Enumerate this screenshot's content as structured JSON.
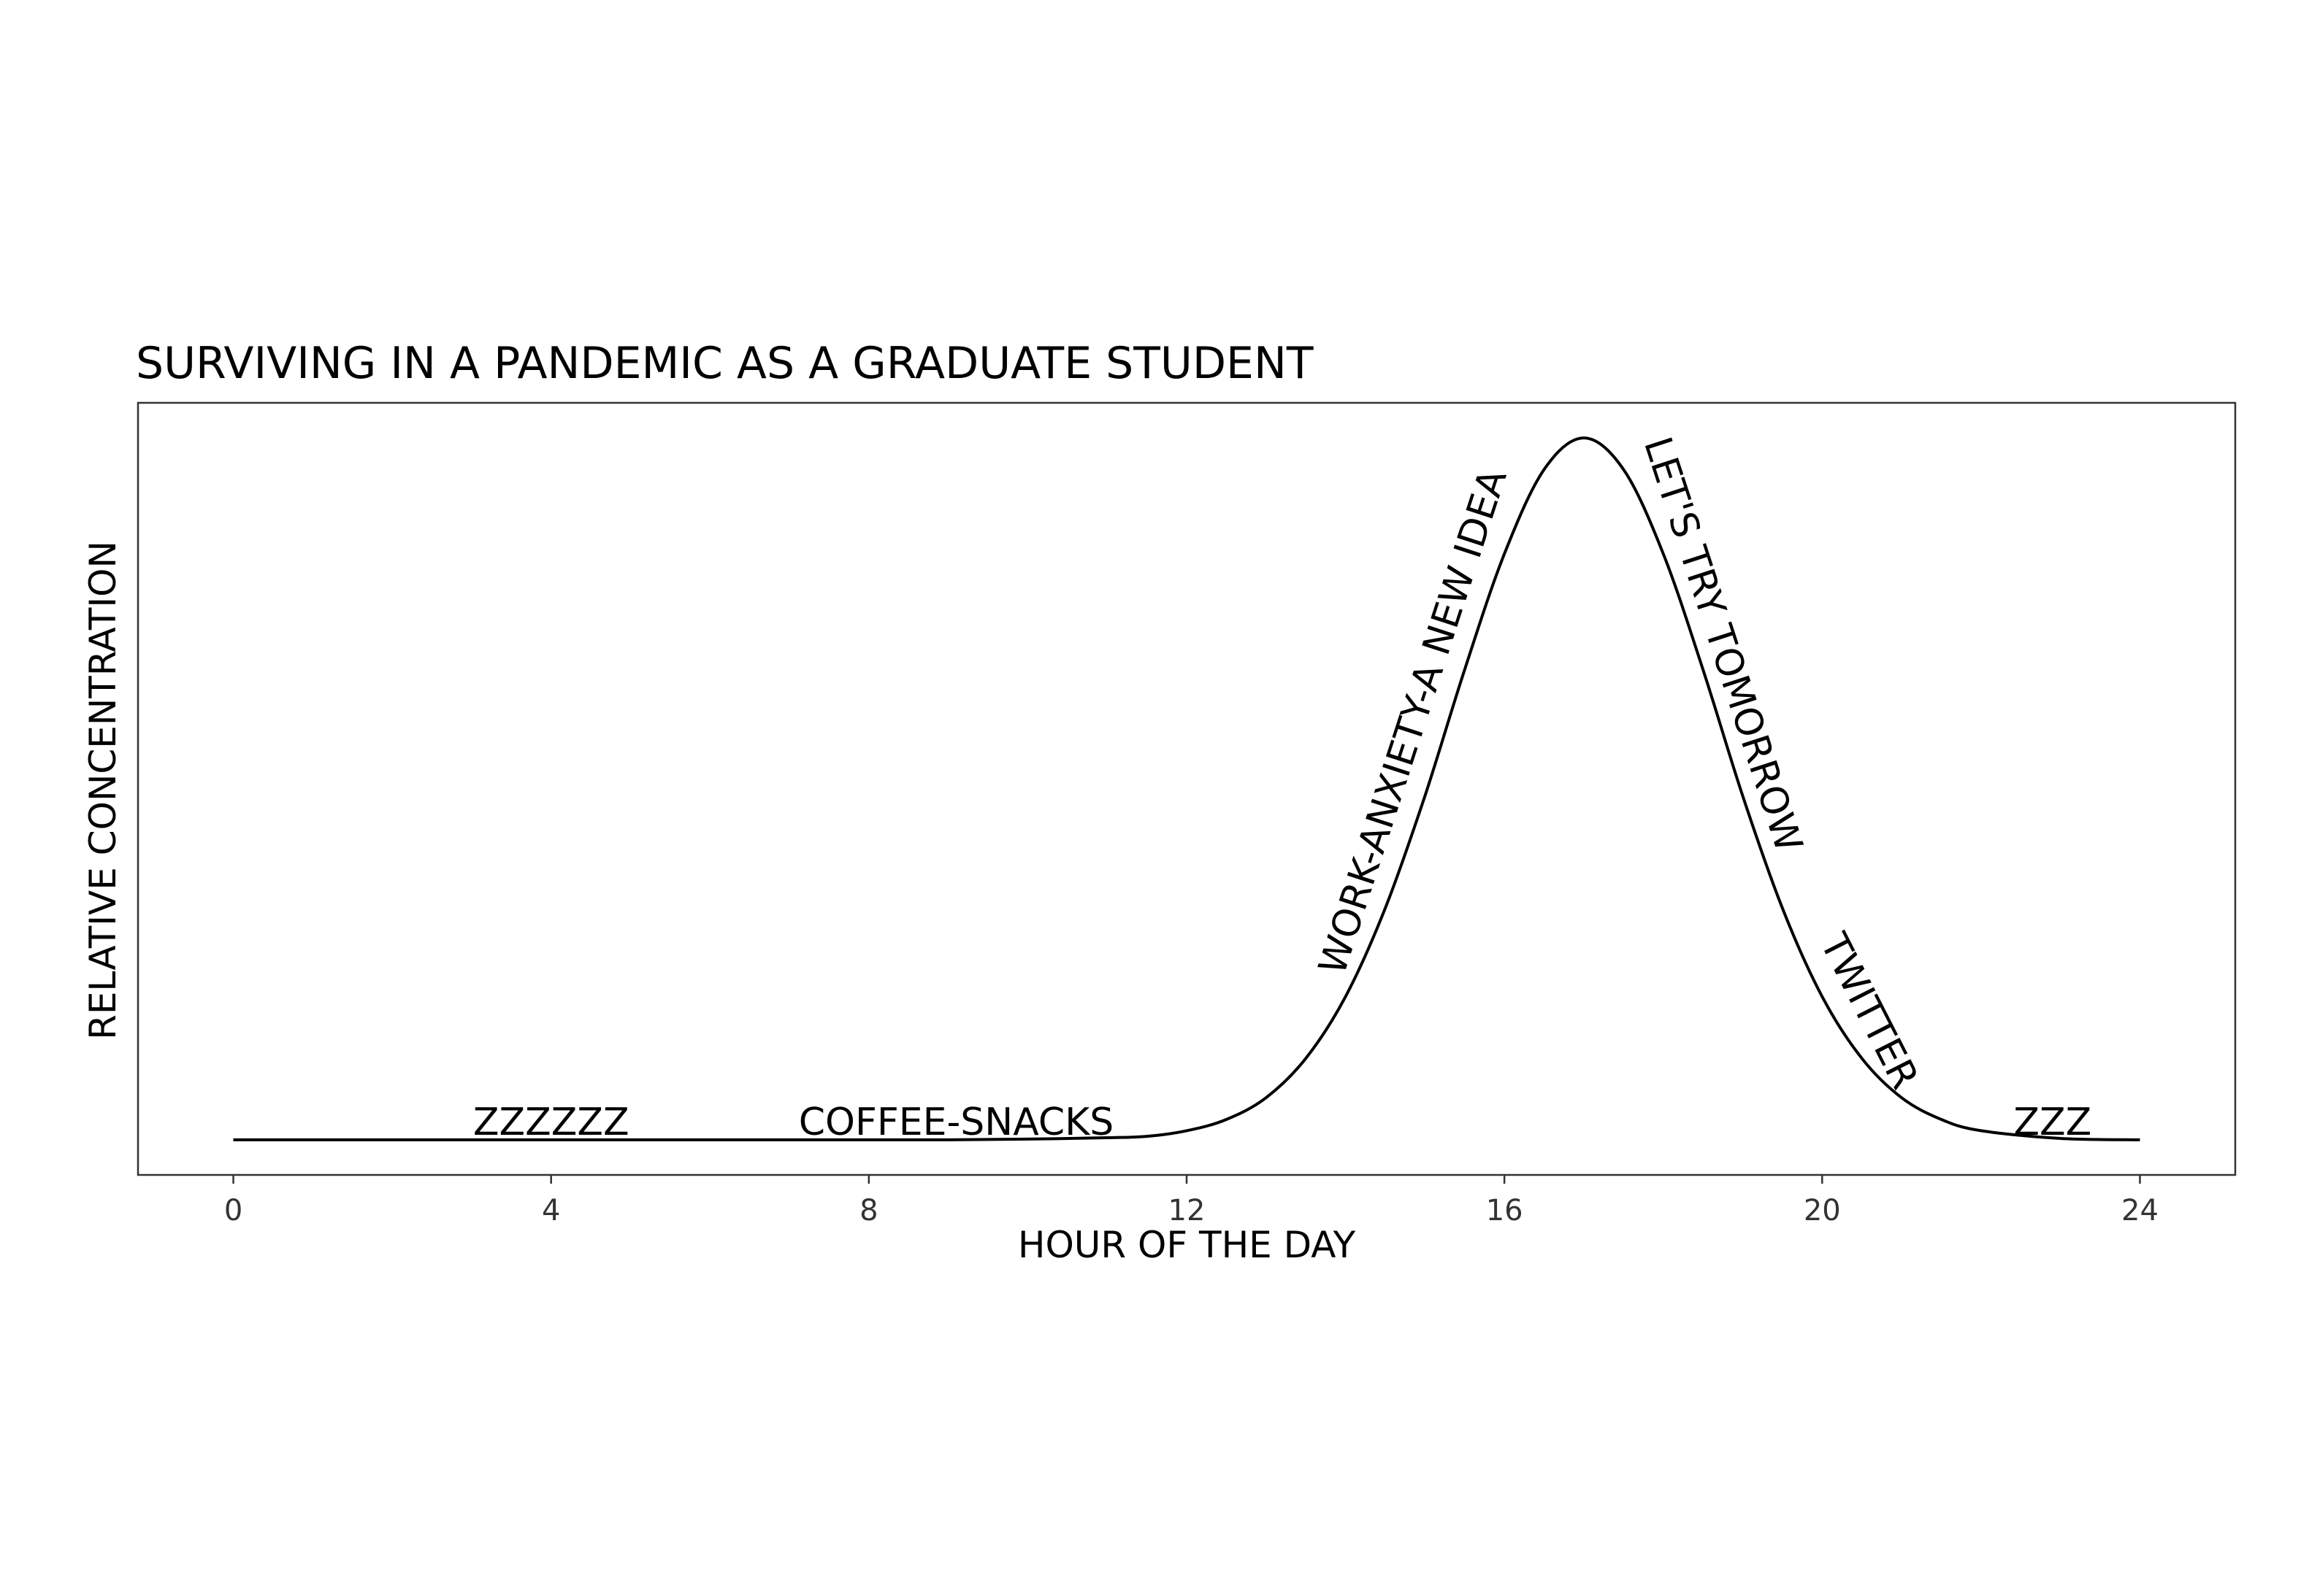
{
  "chart_data": {
    "type": "line",
    "title": "SURVIVING IN A PANDEMIC AS A GRADUATE STUDENT",
    "xlabel": "HOUR OF THE DAY",
    "ylabel": "RELATIVE CONCENTRATION",
    "xlim": [
      -1.2,
      25.2
    ],
    "ylim": [
      -0.05,
      1.05
    ],
    "x_ticks": [
      0,
      4,
      8,
      12,
      16,
      20,
      24
    ],
    "y_ticks": [],
    "grid": false,
    "series": [
      {
        "x": [
          0,
          1,
          2,
          3,
          4,
          5,
          6,
          7,
          8,
          9,
          10,
          11,
          11.5,
          12,
          12.5,
          13,
          13.5,
          14,
          14.5,
          15,
          15.5,
          16,
          16.5,
          17,
          17.5,
          18,
          18.5,
          19,
          19.5,
          20,
          20.5,
          21,
          21.5,
          22,
          23,
          24
        ],
        "y": [
          0,
          0,
          0,
          0,
          0,
          0,
          0,
          0,
          0,
          0,
          0.001,
          0.003,
          0.005,
          0.013,
          0.029,
          0.06,
          0.116,
          0.204,
          0.33,
          0.49,
          0.67,
          0.835,
          0.955,
          1.0,
          0.955,
          0.835,
          0.67,
          0.49,
          0.33,
          0.204,
          0.116,
          0.06,
          0.029,
          0.013,
          0.002,
          0
        ]
      }
    ],
    "annotations": [
      {
        "text": "ZZZZZZ",
        "x": 4.0,
        "y": 0.007,
        "rotation": 0
      },
      {
        "text": "COFFEE-SNACKS",
        "x": 9.1,
        "y": 0.007,
        "rotation": 0
      },
      {
        "text": "WORK-ANXIETY-A NEW IDEA",
        "x": 15.0,
        "y": 0.59,
        "rotation": -72
      },
      {
        "text": "LET'S TRY TOMORROW",
        "x": 18.6,
        "y": 0.7,
        "rotation": 72
      },
      {
        "text": "TWITTER",
        "x": 20.45,
        "y": 0.175,
        "rotation": 63
      },
      {
        "text": "ZZZ",
        "x": 22.9,
        "y": 0.007,
        "rotation": 0
      }
    ]
  }
}
